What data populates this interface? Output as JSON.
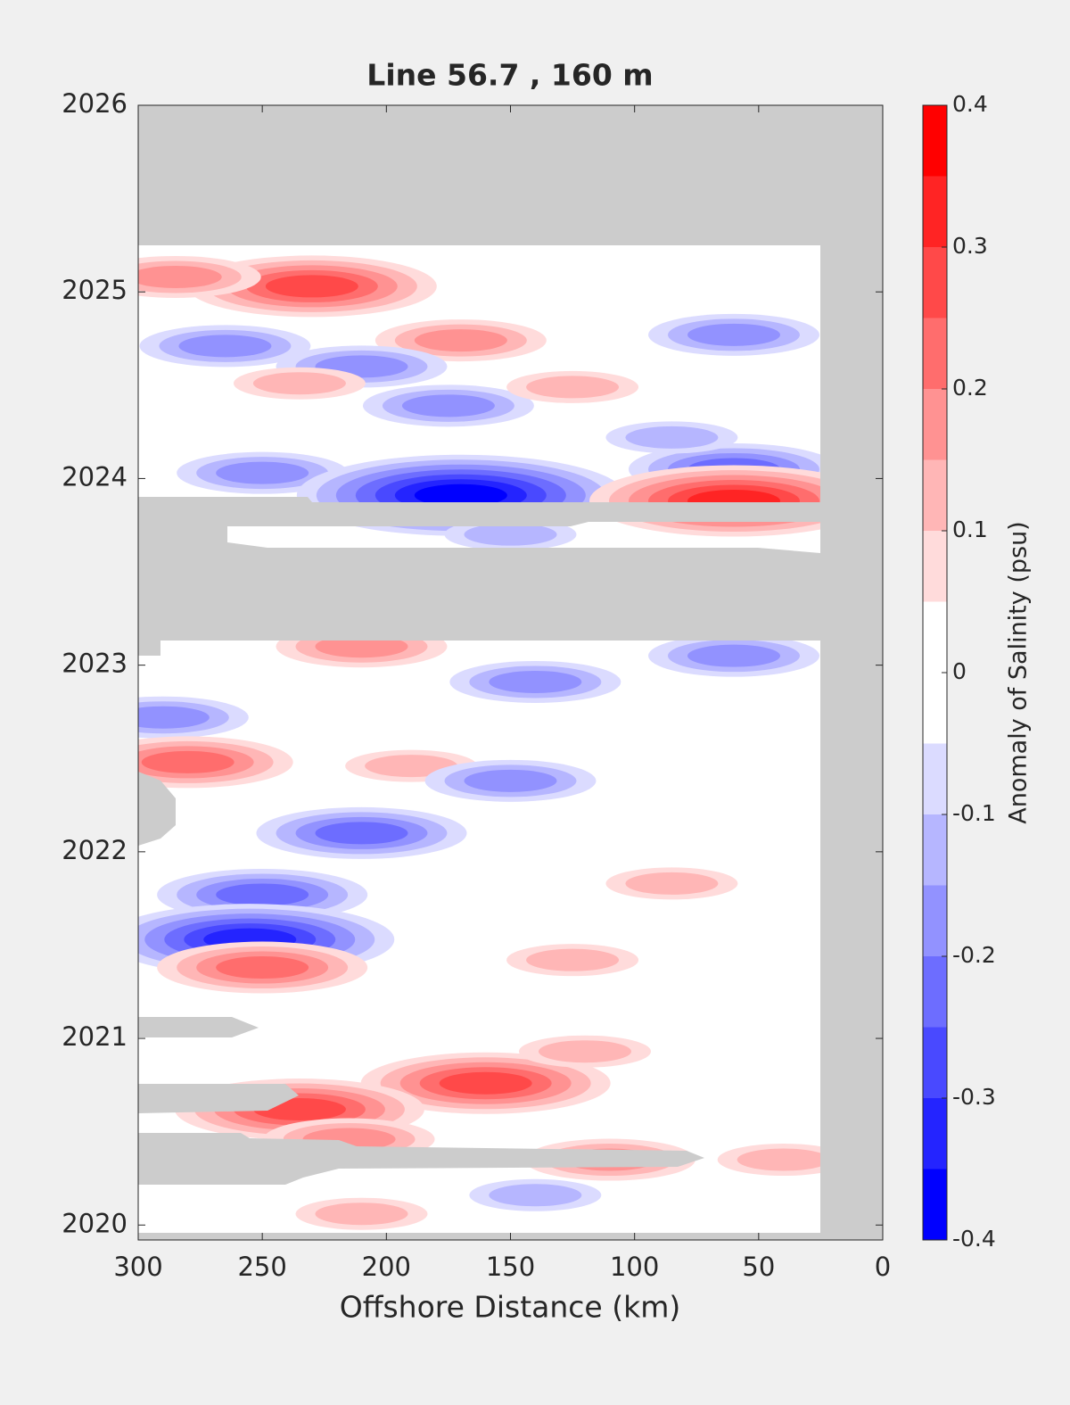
{
  "chart_data": {
    "type": "contour",
    "title": "Line 56.7 , 160 m",
    "x_label": "Offshore Distance (km)",
    "colorbar_label": "Anomaly of Salinity (psu)",
    "xlim": [
      300,
      0
    ],
    "xticks": [
      300,
      250,
      200,
      150,
      100,
      50,
      0
    ],
    "ylim": [
      2019.92,
      2026
    ],
    "yticks": [
      2020,
      2021,
      2022,
      2023,
      2024,
      2025,
      2026
    ],
    "clim": [
      -0.4,
      0.4
    ],
    "colorbar_ticks": [
      -0.4,
      -0.3,
      -0.2,
      -0.1,
      0,
      0.1,
      0.2,
      0.3,
      0.4
    ],
    "levels": [
      -0.4,
      -0.35,
      -0.3,
      -0.25,
      -0.2,
      -0.15,
      -0.1,
      -0.05,
      0,
      0.05,
      0.1,
      0.15,
      0.2,
      0.25,
      0.3,
      0.35,
      0.4
    ],
    "colormap": [
      "#0000ff",
      "#ffffff",
      "#ff0000"
    ],
    "mask_color": "#cccccc",
    "anomalies": {
      "x": [
        230,
        285,
        170,
        175,
        210,
        265,
        235,
        125,
        60,
        60,
        85,
        250,
        170,
        60,
        210,
        60,
        140,
        290,
        280,
        190,
        150,
        210,
        85,
        250,
        255,
        250,
        125,
        160,
        235,
        215,
        110,
        40,
        210,
        140,
        150,
        120
      ],
      "y": [
        2025.03,
        2025.08,
        2024.74,
        2024.39,
        2024.6,
        2024.71,
        2024.51,
        2024.49,
        2024.77,
        2024.05,
        2024.22,
        2024.03,
        2023.91,
        2023.88,
        2023.1,
        2023.05,
        2022.91,
        2022.72,
        2022.48,
        2022.46,
        2022.38,
        2022.1,
        2021.83,
        2021.77,
        2021.53,
        2021.38,
        2021.42,
        2020.76,
        2020.62,
        2020.46,
        2020.35,
        2020.35,
        2020.06,
        2020.16,
        2023.7,
        2020.93
      ],
      "values": [
        0.3,
        0.2,
        0.2,
        -0.15,
        -0.15,
        -0.15,
        0.15,
        0.15,
        -0.15,
        -0.2,
        -0.1,
        -0.15,
        -0.35,
        0.35,
        0.2,
        -0.15,
        -0.15,
        -0.15,
        0.25,
        0.15,
        -0.15,
        -0.2,
        0.15,
        -0.2,
        -0.3,
        0.25,
        0.15,
        0.3,
        0.3,
        0.2,
        0.2,
        0.15,
        0.15,
        -0.1,
        -0.1,
        0.15
      ]
    }
  }
}
